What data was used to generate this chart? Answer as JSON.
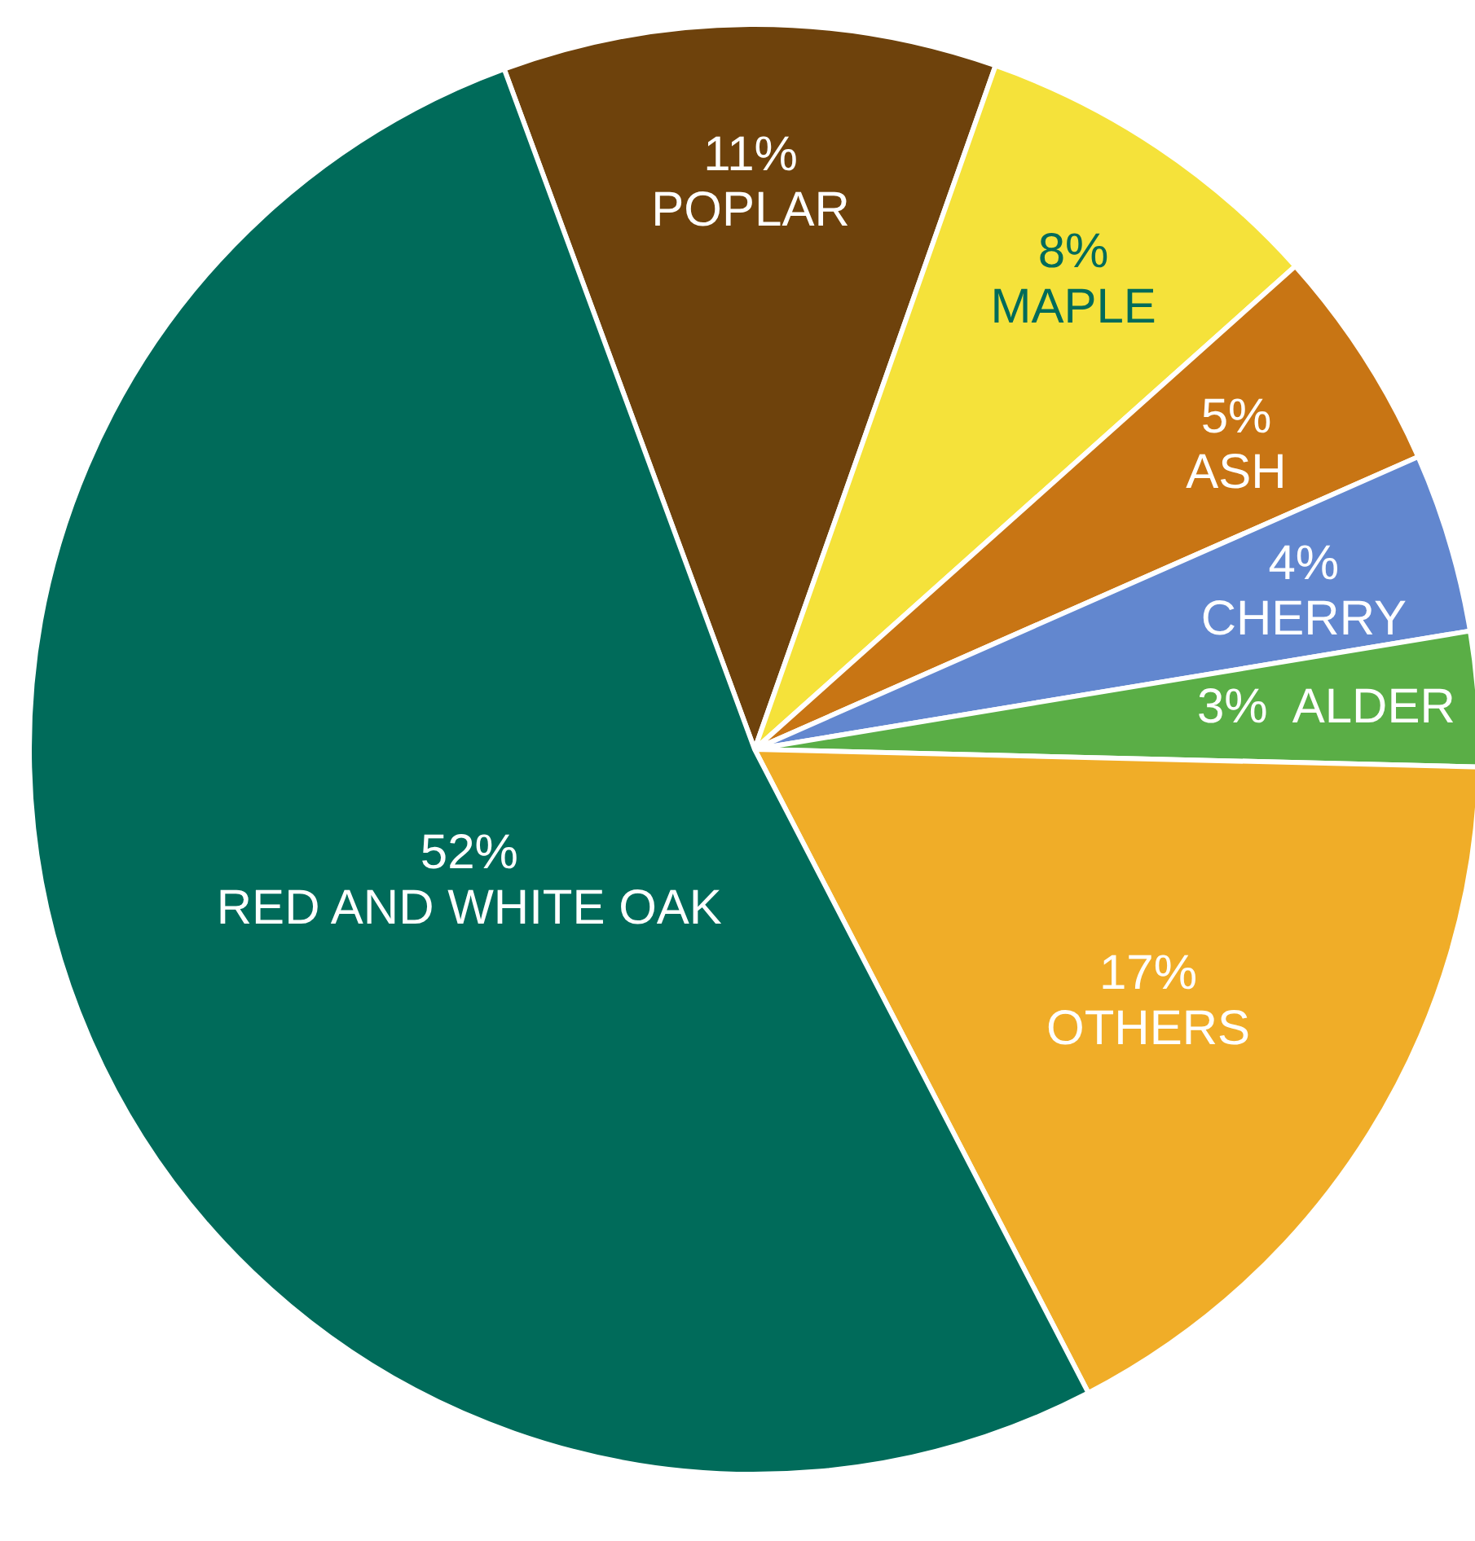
{
  "chart_data": {
    "type": "pie",
    "categories": [
      "POPLAR",
      "MAPLE",
      "ASH",
      "CHERRY",
      "ALDER",
      "OTHERS",
      "RED AND WHITE OAK"
    ],
    "values": [
      11,
      8,
      5,
      4,
      3,
      17,
      52
    ],
    "value_labels": [
      "11%",
      "8%",
      "5%",
      "4%",
      "3%",
      "17%",
      "52%"
    ],
    "colors": [
      "#6e420c",
      "#f5e23a",
      "#c87514",
      "#6287cf",
      "#5aae46",
      "#f0ad28",
      "#006b5a"
    ]
  }
}
